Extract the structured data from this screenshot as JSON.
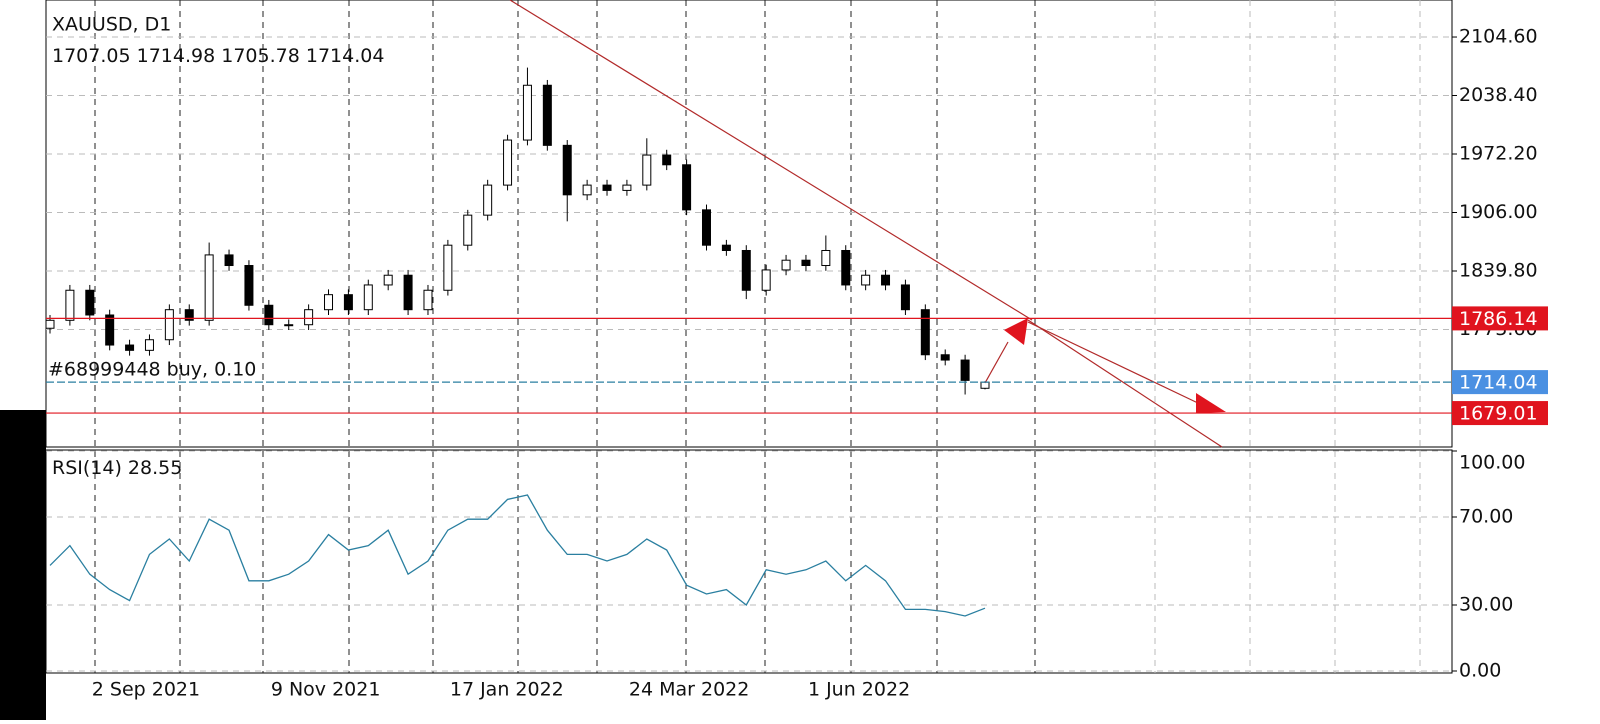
{
  "chart_data": [
    {
      "type": "candlestick",
      "title": "XAUUSD, D1",
      "categories": [
        null,
        null,
        "2 Sep 2021",
        null,
        null,
        null,
        null,
        null,
        null,
        null,
        null,
        "9 Nov 2021",
        null,
        null,
        null,
        null,
        null,
        null,
        null,
        null,
        "17 Jan 2022",
        null,
        null,
        null,
        null,
        null,
        null,
        null,
        null,
        "24 Mar 2022",
        null,
        null,
        null,
        null,
        null,
        null,
        null,
        null,
        "1 Jun 2022",
        null,
        null,
        null,
        null,
        null,
        null,
        null,
        null,
        null
      ],
      "open": [
        1775,
        1784,
        1818,
        1790,
        1756,
        1750,
        1762,
        1796,
        1784,
        1858,
        1846,
        1801,
        1779,
        1779,
        1796,
        1813,
        1796,
        1824,
        1835,
        1796,
        1818,
        1869,
        1903,
        1937,
        1988,
        2050,
        1982,
        1926,
        1937,
        1931,
        1937,
        1971,
        1960,
        1909,
        1869,
        1863,
        1818,
        1841,
        1852,
        1846,
        1863,
        1824,
        1835,
        1824,
        1796,
        1745,
        1739,
        1707.05
      ],
      "high": [
        1790,
        1824,
        1824,
        1796,
        1762,
        1768,
        1802,
        1802,
        1872,
        1864,
        1852,
        1807,
        1785,
        1802,
        1819,
        1819,
        1830,
        1841,
        1841,
        1824,
        1875,
        1909,
        1943,
        1994,
        2070,
        2056,
        1988,
        1943,
        1943,
        1943,
        1990,
        1977,
        1966,
        1915,
        1875,
        1869,
        1847,
        1858,
        1858,
        1880,
        1869,
        1841,
        1841,
        1830,
        1802,
        1751,
        1745,
        1714.98
      ],
      "low": [
        1769,
        1778,
        1784,
        1750,
        1744,
        1744,
        1756,
        1778,
        1778,
        1840,
        1795,
        1773,
        1773,
        1773,
        1790,
        1790,
        1790,
        1818,
        1790,
        1790,
        1812,
        1863,
        1897,
        1931,
        1982,
        1976,
        1896,
        1920,
        1925,
        1925,
        1931,
        1954,
        1903,
        1863,
        1857,
        1808,
        1812,
        1835,
        1840,
        1840,
        1818,
        1818,
        1818,
        1790,
        1739,
        1733,
        1700,
        1705.78
      ],
      "close": [
        1784,
        1818,
        1790,
        1756,
        1750,
        1762,
        1796,
        1784,
        1858,
        1846,
        1801,
        1779,
        1779,
        1796,
        1813,
        1796,
        1824,
        1835,
        1796,
        1818,
        1869,
        1903,
        1937,
        1988,
        2050,
        1982,
        1926,
        1937,
        1931,
        1937,
        1971,
        1960,
        1909,
        1869,
        1863,
        1818,
        1841,
        1852,
        1846,
        1863,
        1824,
        1835,
        1824,
        1796,
        1745,
        1739,
        1716,
        1714.04
      ],
      "ylim": [
        1640.6,
        2146.5
      ],
      "yticks": [
        {
          "value": 2104.6,
          "label": "2104.60"
        },
        {
          "value": 2038.4,
          "label": "2038.40"
        },
        {
          "value": 1972.2,
          "label": "1972.20"
        },
        {
          "value": 1906,
          "label": "1906.00"
        },
        {
          "value": 1839.8,
          "label": "1839.80"
        },
        {
          "value": 1773.6,
          "label": "1773.60"
        }
      ],
      "levels": [
        {
          "value": 1786.14,
          "label": "1786.14",
          "color": "#e0141e"
        },
        {
          "value": 1714.04,
          "label": "1714.04",
          "color": "#4a90e2"
        },
        {
          "value": 1679.01,
          "label": "1679.01",
          "color": "#e0141e"
        }
      ],
      "order_label": "#68999448 buy, 0.10",
      "grid": true
    },
    {
      "type": "line",
      "title": "RSI(14)",
      "values": [
        48,
        57,
        44,
        37,
        32,
        53,
        60,
        50,
        69,
        64,
        41,
        41,
        44,
        50,
        62,
        55,
        57,
        64,
        44,
        50,
        64,
        69,
        69,
        78,
        80,
        64,
        53,
        53,
        50,
        53,
        60,
        55,
        39,
        35,
        37,
        30,
        46,
        44,
        46,
        50,
        41,
        48,
        41,
        28,
        28,
        27,
        25,
        28.55
      ],
      "color": "#2a7fa0",
      "ylim": [
        0,
        100
      ],
      "yticks": [
        {
          "value": 100,
          "label": "100.00"
        },
        {
          "value": 70,
          "label": "70.00"
        },
        {
          "value": 30,
          "label": "30.00"
        },
        {
          "value": 0,
          "label": "0.00"
        }
      ],
      "grid": true
    }
  ]
}
